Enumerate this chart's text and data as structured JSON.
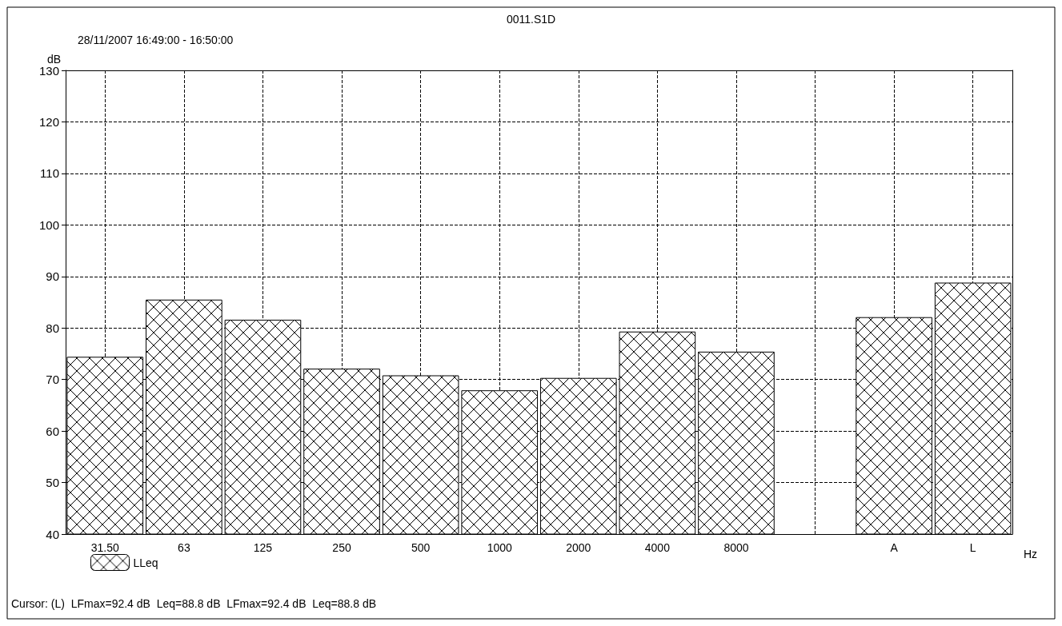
{
  "chart_data": {
    "type": "bar",
    "title": "0011.S1D",
    "subtitle": "28/11/2007 16:49:00 - 16:50:00",
    "ylabel": "dB",
    "xlabel": "Hz",
    "categories": [
      "31.50",
      "63",
      "125",
      "250",
      "500",
      "1000",
      "2000",
      "4000",
      "8000",
      null,
      "A",
      "L"
    ],
    "series": [
      {
        "name": "LLeq",
        "color": "#000000",
        "values": [
          74.4,
          85.5,
          81.6,
          72.1,
          70.8,
          67.9,
          70.3,
          79.3,
          75.4,
          null,
          82.1,
          88.8
        ]
      }
    ],
    "ylim": [
      40,
      130
    ],
    "yticks": [
      40,
      50,
      60,
      70,
      80,
      90,
      100,
      110,
      120,
      130
    ],
    "grid": true,
    "legend": "bottom left",
    "annotations": [
      "Cursor: (L)  LFmax=92.4 dB  Leq=88.8 dB  LFmax=92.4 dB  Leq=88.8 dB"
    ]
  }
}
